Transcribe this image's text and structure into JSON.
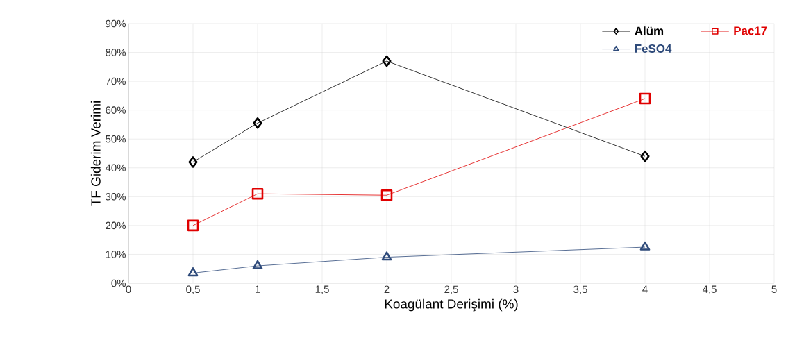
{
  "chart_data": {
    "type": "line",
    "xlabel": "Koagülant Derişimi (%)",
    "ylabel": "TF Giderim Verimi",
    "x": [
      0.5,
      1,
      2,
      4
    ],
    "series": [
      {
        "name": "Alüm",
        "color": "#000000",
        "marker": "diamond",
        "values": [
          42,
          55.5,
          77,
          44
        ]
      },
      {
        "name": "Pac17",
        "color": "#e00000",
        "marker": "square",
        "values": [
          20,
          31,
          30.5,
          64
        ]
      },
      {
        "name": "FeSO4",
        "color": "#2e4a7a",
        "marker": "triangle",
        "values": [
          3.5,
          6,
          9,
          12.5
        ]
      }
    ],
    "xlim": [
      0,
      5
    ],
    "xticks": [
      0,
      {
        "value": 0.5,
        "label": "0,5"
      },
      1,
      {
        "value": 1.5,
        "label": "1,5"
      },
      2,
      {
        "value": 2.5,
        "label": "2,5"
      },
      3,
      {
        "value": 3.5,
        "label": "3,5"
      },
      4,
      {
        "value": 4.5,
        "label": "4,5"
      },
      5
    ],
    "ylim": [
      0,
      90
    ],
    "yticks": [
      {
        "value": 0,
        "label": "0%"
      },
      {
        "value": 10,
        "label": "10%"
      },
      {
        "value": 20,
        "label": "20%"
      },
      {
        "value": 30,
        "label": "30%"
      },
      {
        "value": 40,
        "label": "40%"
      },
      {
        "value": 50,
        "label": "50%"
      },
      {
        "value": 60,
        "label": "60%"
      },
      {
        "value": 70,
        "label": "70%"
      },
      {
        "value": 80,
        "label": "80%"
      },
      {
        "value": 90,
        "label": "90%"
      }
    ],
    "grid": true,
    "legend": "top right",
    "line_style": "solid"
  }
}
